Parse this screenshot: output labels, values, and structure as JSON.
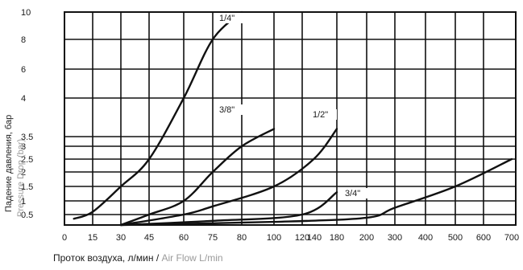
{
  "chart_data": {
    "type": "line",
    "xlabel_ru": "Проток воздуха, л/мин",
    "xlabel_sep": "/",
    "xlabel_en": "Air Flow L/min",
    "ylabel_ru": "Падение давления, бар",
    "ylabel_en": "Pressure Drop (bar)",
    "x_ticks": [
      "0",
      "15",
      "30",
      "45",
      "60",
      "75",
      "80",
      "100",
      "120",
      "140",
      "180",
      "200",
      "300",
      "400",
      "500",
      "600",
      "700"
    ],
    "y_ticks": [
      "0.5",
      "1",
      "1.5",
      "2",
      "2.5",
      "3",
      "3.5",
      "4",
      "6",
      "8",
      "10"
    ],
    "grid": true,
    "series": [
      {
        "name": "1/4\"",
        "points": [
          [
            5,
            0.3
          ],
          [
            15,
            0.6
          ],
          [
            30,
            1.5
          ],
          [
            45,
            2.5
          ],
          [
            60,
            4.0
          ],
          [
            75,
            8.0
          ],
          [
            80,
            10.0
          ]
        ]
      },
      {
        "name": "3/8\"",
        "points": [
          [
            30,
            0.0
          ],
          [
            45,
            0.5
          ],
          [
            60,
            1.0
          ],
          [
            75,
            2.0
          ],
          [
            80,
            3.0
          ],
          [
            100,
            3.6
          ]
        ]
      },
      {
        "name": "1/2\"",
        "points": [
          [
            30,
            0.0
          ],
          [
            60,
            0.5
          ],
          [
            75,
            0.8
          ],
          [
            100,
            1.5
          ],
          [
            140,
            2.5
          ],
          [
            180,
            3.6
          ]
        ]
      },
      {
        "name": "3/4\"",
        "points": [
          [
            30,
            0.0
          ],
          [
            75,
            0.2
          ],
          [
            120,
            0.5
          ],
          [
            180,
            1.3
          ]
        ]
      },
      {
        "name": "",
        "points": [
          [
            30,
            0.0
          ],
          [
            100,
            0.15
          ],
          [
            200,
            0.35
          ],
          [
            300,
            0.75
          ],
          [
            500,
            1.5
          ],
          [
            700,
            2.5
          ]
        ]
      }
    ]
  }
}
